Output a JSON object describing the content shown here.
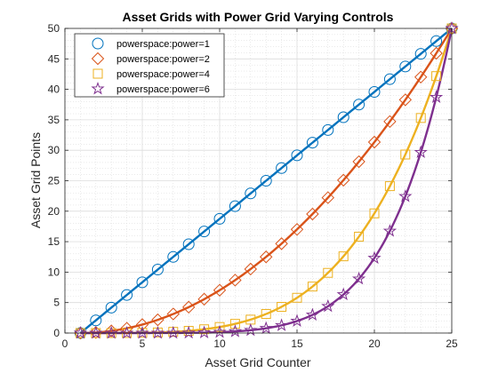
{
  "chart_data": {
    "type": "line",
    "title": "Asset Grids with Power Grid Varying Controls",
    "xlabel": "Asset Grid Counter",
    "ylabel": "Asset Grid Points",
    "xlim": [
      0,
      25
    ],
    "ylim": [
      0,
      50
    ],
    "xticks": [
      0,
      5,
      10,
      15,
      20,
      25
    ],
    "yticks": [
      0,
      5,
      10,
      15,
      20,
      25,
      30,
      35,
      40,
      45,
      50
    ],
    "grid": "on (major and minor)",
    "legend_position": "top-left",
    "x": [
      1,
      2,
      3,
      4,
      5,
      6,
      7,
      8,
      9,
      10,
      11,
      12,
      13,
      14,
      15,
      16,
      17,
      18,
      19,
      20,
      21,
      22,
      23,
      24,
      25
    ],
    "series": [
      {
        "name": "powerspace:power=1",
        "power": 1,
        "marker": "circle",
        "color": "#0072BD",
        "values": [
          0,
          2.08,
          4.17,
          6.25,
          8.33,
          10.42,
          12.5,
          14.58,
          16.67,
          18.75,
          20.83,
          22.92,
          25,
          27.08,
          29.17,
          31.25,
          33.33,
          35.42,
          37.5,
          39.58,
          41.67,
          43.75,
          45.83,
          47.92,
          50
        ]
      },
      {
        "name": "powerspace:power=2",
        "power": 2,
        "marker": "diamond",
        "color": "#D95319",
        "values": [
          0,
          0.09,
          0.35,
          0.78,
          1.39,
          2.17,
          3.13,
          4.25,
          5.56,
          7.03,
          8.68,
          10.5,
          12.5,
          14.67,
          17.01,
          19.53,
          22.22,
          25.09,
          28.13,
          31.34,
          34.72,
          38.28,
          42.01,
          45.92,
          50
        ]
      },
      {
        "name": "powerspace:power=4",
        "power": 4,
        "marker": "square",
        "color": "#EDB120",
        "values": [
          0,
          0,
          0,
          0.01,
          0.04,
          0.09,
          0.2,
          0.36,
          0.62,
          0.99,
          1.51,
          2.2,
          3.13,
          4.3,
          5.79,
          7.63,
          9.88,
          12.59,
          15.82,
          19.64,
          24.11,
          29.3,
          35.3,
          42.17,
          50
        ]
      },
      {
        "name": "powerspace:power=6",
        "power": 6,
        "marker": "star",
        "color": "#7E2F8E",
        "values": [
          0,
          0,
          0,
          0,
          0,
          0,
          0.01,
          0.03,
          0.07,
          0.14,
          0.26,
          0.46,
          0.78,
          1.26,
          1.97,
          2.98,
          4.39,
          6.32,
          8.9,
          12.3,
          16.74,
          22.43,
          29.66,
          38.71,
          50
        ]
      }
    ]
  }
}
